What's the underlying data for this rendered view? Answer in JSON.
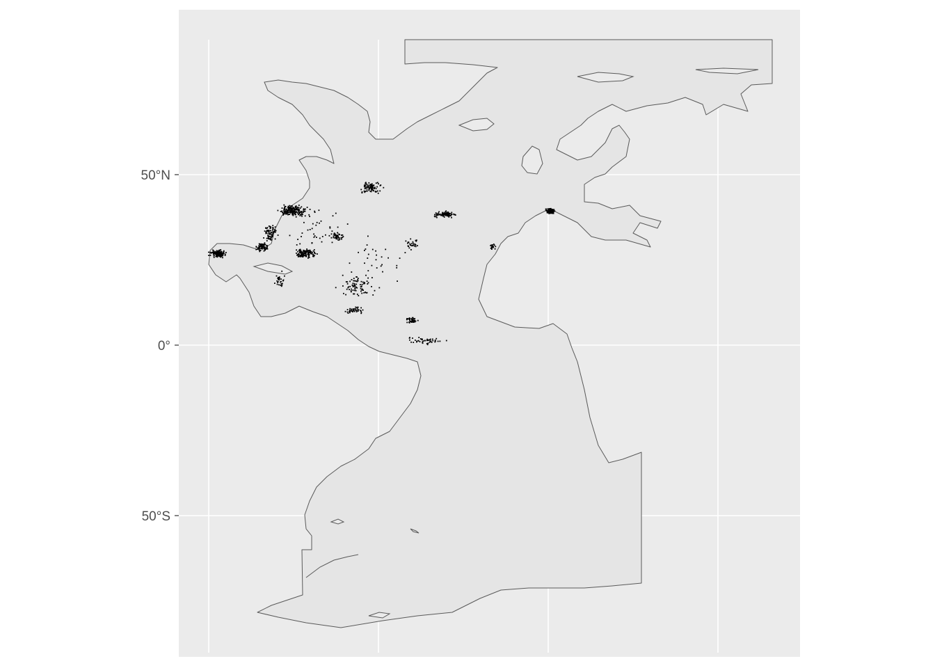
{
  "axis": {
    "y_ticks": [
      {
        "label": "50°N",
        "lat": 50
      },
      {
        "label": "0°",
        "lat": 0
      },
      {
        "label": "50°S",
        "lat": -50
      }
    ],
    "x_grid_lon": [
      -100,
      -50,
      0,
      50
    ]
  },
  "colors": {
    "panel": "#ebebeb",
    "grid": "#ffffff",
    "region_fill": "#e5e5e5",
    "region_stroke": "#595959",
    "points": "#000000",
    "tick_text": "#4d4d4d"
  },
  "point_clusters": [
    {
      "lon": -95.0,
      "lat": 27.0,
      "n": 140,
      "spread_lon": 1.8,
      "spread_lat": 0.8
    },
    {
      "lon": -73.0,
      "lat": 39.5,
      "n": 200,
      "spread_lon": 3.0,
      "spread_lat": 1.2
    },
    {
      "lon": -79.5,
      "lat": 33.0,
      "n": 80,
      "spread_lon": 1.5,
      "spread_lat": 2.0
    },
    {
      "lon": -82.0,
      "lat": 29.0,
      "n": 80,
      "spread_lon": 1.2,
      "spread_lat": 1.0
    },
    {
      "lon": -69.0,
      "lat": 27.0,
      "n": 120,
      "spread_lon": 2.5,
      "spread_lat": 1.2
    },
    {
      "lon": -50.0,
      "lat": 46.5,
      "n": 90,
      "spread_lon": 2.5,
      "spread_lat": 1.4
    },
    {
      "lon": -28.0,
      "lat": 38.5,
      "n": 110,
      "spread_lon": 2.5,
      "spread_lat": 0.6
    },
    {
      "lon": 3.0,
      "lat": 39.5,
      "n": 90,
      "spread_lon": 1.0,
      "spread_lat": 0.6
    },
    {
      "lon": -77.0,
      "lat": 19.0,
      "n": 30,
      "spread_lon": 1.5,
      "spread_lat": 2.0
    },
    {
      "lon": -60.0,
      "lat": 32.0,
      "n": 40,
      "spread_lon": 1.5,
      "spread_lat": 1.0
    },
    {
      "lon": -54.0,
      "lat": 17.5,
      "n": 80,
      "spread_lon": 4.0,
      "spread_lat": 2.5
    },
    {
      "lon": -55.0,
      "lat": 10.5,
      "n": 40,
      "spread_lon": 2.5,
      "spread_lat": 0.8
    },
    {
      "lon": -38.0,
      "lat": 7.5,
      "n": 40,
      "spread_lon": 1.5,
      "spread_lat": 0.8
    },
    {
      "lon": -34.0,
      "lat": 1.5,
      "n": 50,
      "spread_lon": 4.0,
      "spread_lat": 0.8
    },
    {
      "lon": -38.0,
      "lat": 30.0,
      "n": 30,
      "spread_lon": 2.0,
      "spread_lat": 1.5
    },
    {
      "lon": -14.0,
      "lat": 29.0,
      "n": 20,
      "spread_lon": 0.8,
      "spread_lat": 0.8
    },
    {
      "lon": -65.0,
      "lat": 35.0,
      "n": 40,
      "spread_lon": 7.0,
      "spread_lat": 5.0
    },
    {
      "lon": -50.0,
      "lat": 25.0,
      "n": 30,
      "spread_lon": 8.0,
      "spread_lat": 6.0
    }
  ]
}
